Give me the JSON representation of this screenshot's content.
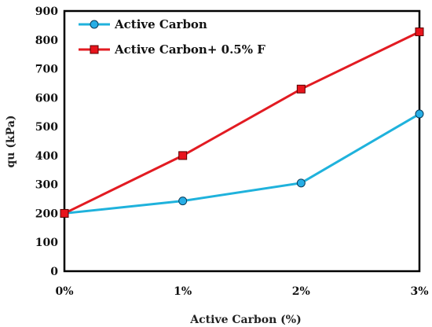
{
  "chart_data": {
    "type": "line",
    "title": "",
    "xlabel": "Active Carbon  (%)",
    "ylabel": "qu (kPa)",
    "categories": [
      "0%",
      "1%",
      "2%",
      "3%"
    ],
    "ylim": [
      0,
      900
    ],
    "yticks": [
      "0",
      "100",
      "200",
      "300",
      "400",
      "500",
      "600",
      "700",
      "800",
      "900"
    ],
    "grid": false,
    "legend_position": "top-left",
    "series": [
      {
        "name": "Active Carbon",
        "values": [
          200,
          243,
          305,
          544
        ],
        "color": "#1fb2dc",
        "marker": "circle",
        "marker_fill": "#27aee6"
      },
      {
        "name": "Active Carbon+ 0.5% F",
        "values": [
          200,
          400,
          630,
          828
        ],
        "color": "#e21b22",
        "marker": "square",
        "marker_fill": "#e8141c"
      }
    ]
  }
}
